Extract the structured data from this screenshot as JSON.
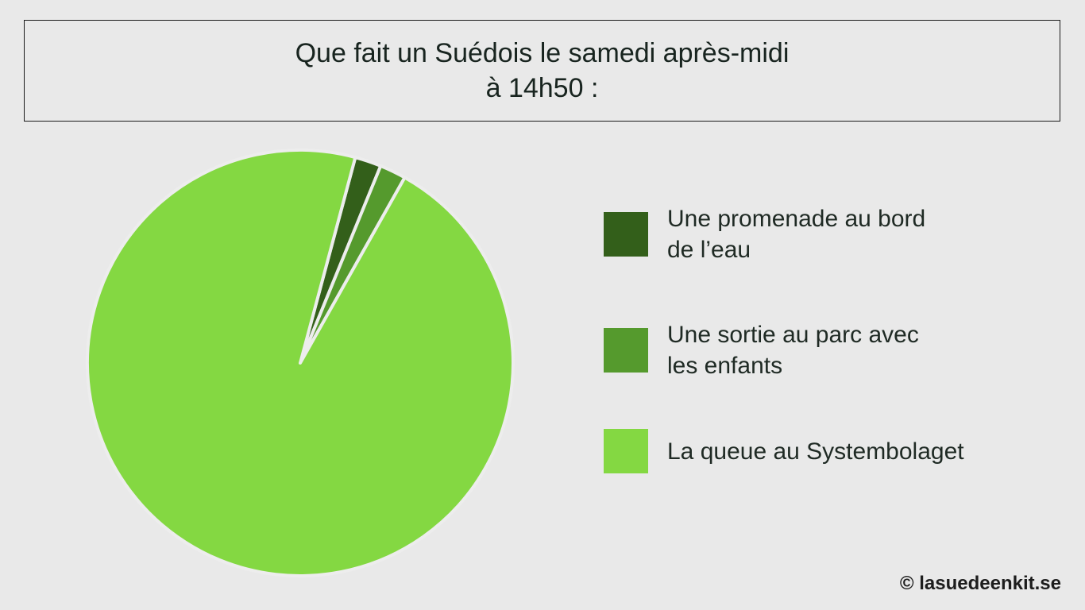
{
  "chart_data": {
    "type": "pie",
    "title": "Que fait un Suédois le samedi après-midi à 14h50 :",
    "title_lines": [
      "Que fait un Suédois le samedi après-midi",
      "à 14h50 :"
    ],
    "legend_position": "right",
    "slices": [
      {
        "label": "Une promenade au bord de l’eau",
        "label_lines": [
          "Une promenade au bord",
          "de l’eau"
        ],
        "value": 2,
        "color": "#335f1a"
      },
      {
        "label": "Une sortie au parc avec les enfants",
        "label_lines": [
          "Une sortie au parc avec",
          "les enfants"
        ],
        "value": 2,
        "color": "#559a2d"
      },
      {
        "label": "La queue au Systembolaget",
        "label_lines": [
          "La queue au Systembolaget"
        ],
        "value": 96,
        "color": "#84d842"
      }
    ]
  },
  "credit": "© lasuedeenkit.se"
}
